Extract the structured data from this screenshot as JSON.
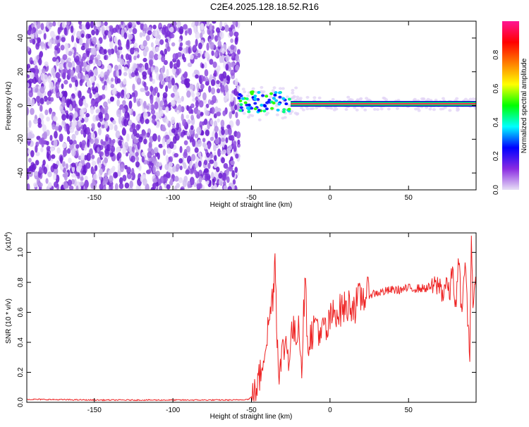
{
  "title": "C2E4.2025.128.18.52.R16",
  "chart_data": [
    {
      "type": "heatmap",
      "xlabel": "Height of straight line (km)",
      "ylabel": "Frequency (Hz)",
      "xlim": [
        -193,
        93
      ],
      "ylim": [
        -50,
        50
      ],
      "x_ticks": [
        -150,
        -100,
        -50,
        0,
        50
      ],
      "y_ticks": [
        -40,
        -20,
        0,
        20,
        40
      ],
      "colorbar": {
        "label": "Normalized spectral amplitude",
        "range": [
          0,
          1
        ],
        "ticks": [
          0.0,
          0.2,
          0.4,
          0.6,
          0.8
        ],
        "colors": [
          "#e8e0f6",
          "#8a2be2",
          "#0000ff",
          "#00ffff",
          "#00ff00",
          "#ffff00",
          "#ff7f00",
          "#ff0000",
          "#ff1493"
        ]
      },
      "noise_region_x": [
        -193,
        -58
      ],
      "signal_line_frequency": 1,
      "signal_x_range": [
        -58,
        93
      ]
    },
    {
      "type": "line",
      "xlabel": "Height of straight line (km)",
      "ylabel": "SNR (10 * v/v)",
      "y_multiplier_label": "(x10^4)",
      "xlim": [
        -193,
        93
      ],
      "ylim": [
        0,
        1.13
      ],
      "x_ticks": [
        -150,
        -100,
        -50,
        0,
        50
      ],
      "y_ticks": [
        0.0,
        0.2,
        0.4,
        0.6,
        0.8,
        1.0
      ],
      "line_color": "#ee2222",
      "series": [
        {
          "x": [
            -193,
            -150,
            -100,
            -60,
            -52,
            -48,
            -46,
            -44,
            -42,
            -40,
            -38,
            -36,
            -35,
            -34,
            -33,
            -32,
            -30,
            -28,
            -26,
            -24,
            -22,
            -20,
            -18,
            -16,
            -14,
            -12,
            -10,
            -8,
            -6,
            -4,
            -2,
            0,
            2,
            4,
            6,
            8,
            10,
            12,
            14,
            16,
            18,
            20,
            22,
            25,
            30,
            35,
            40,
            45,
            50,
            55,
            60,
            65,
            70,
            72,
            74,
            76,
            78,
            80,
            82,
            84,
            86,
            88,
            89,
            90,
            91,
            92,
            93
          ],
          "values": [
            0.02,
            0.015,
            0.015,
            0.015,
            0.02,
            0.05,
            0.12,
            0.2,
            0.35,
            0.45,
            0.6,
            0.75,
            1.02,
            0.55,
            0.3,
            0.2,
            0.35,
            0.4,
            0.3,
            0.5,
            0.42,
            0.55,
            0.25,
            0.8,
            0.4,
            0.45,
            0.5,
            0.55,
            0.4,
            0.52,
            0.45,
            0.55,
            0.58,
            0.62,
            0.6,
            0.64,
            0.62,
            0.65,
            0.66,
            0.64,
            0.68,
            0.7,
            0.71,
            0.72,
            0.73,
            0.74,
            0.75,
            0.75,
            0.76,
            0.76,
            0.76,
            0.77,
            0.78,
            0.72,
            0.82,
            0.7,
            0.9,
            0.62,
            0.95,
            0.55,
            0.98,
            0.45,
            0.35,
            1.13,
            0.6,
            0.8,
            0.75
          ]
        }
      ]
    }
  ]
}
